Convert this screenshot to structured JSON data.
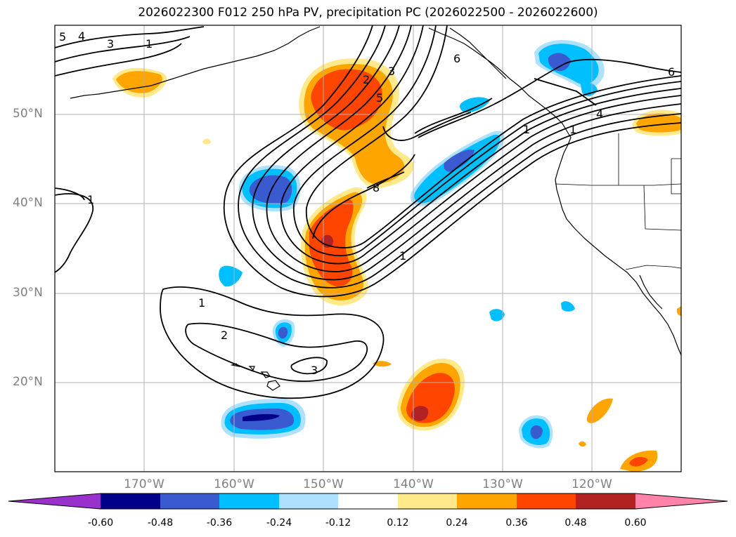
{
  "title": "2026022300 F012 250 hPa PV, precipitation PC (2026022500 - 2026022600)",
  "lat_labels": [
    "50°N",
    "40°N",
    "30°N",
    "20°N"
  ],
  "lon_labels": [
    "170°W",
    "160°W",
    "150°W",
    "140°W",
    "130°W",
    "120°W"
  ],
  "colorbar": {
    "ticks": [
      "-0.60",
      "-0.48",
      "-0.36",
      "-0.24",
      "-0.12",
      "0.12",
      "0.24",
      "0.36",
      "0.48",
      "0.60"
    ],
    "colors": [
      "#9932cc",
      "#00008b",
      "#3a5bd0",
      "#00bfff",
      "#aee0ff",
      "#ffffff",
      "#ffe98a",
      "#ffa500",
      "#ff4500",
      "#b22222",
      "#ff82a8"
    ]
  },
  "contour_labels": [
    "5",
    "4",
    "3",
    "1",
    "1",
    "6",
    "2",
    "3",
    "5",
    "1",
    "8",
    "1",
    "1",
    "1",
    "2",
    "3",
    "6",
    "4"
  ],
  "colors": {
    "land_outline": "#000000",
    "grid": "#b0b0b0"
  }
}
